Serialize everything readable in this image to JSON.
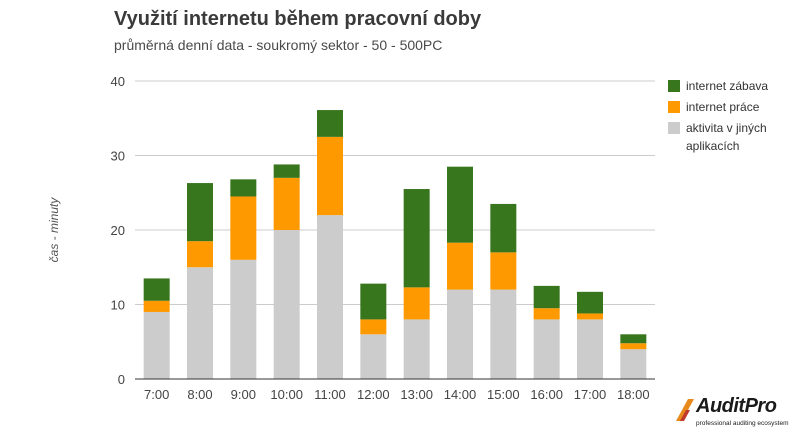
{
  "chart_data": {
    "type": "bar",
    "stacked": true,
    "title": "Využití internetu během pracovní doby",
    "subtitle": "průměrná denní data - soukromý sektor - 50 - 500PC",
    "xlabel": "",
    "ylabel": "čas - minuty",
    "ylim": [
      0,
      40
    ],
    "yticks": [
      "0",
      "10",
      "20",
      "30",
      "40"
    ],
    "grid": true,
    "legend_position": "right",
    "categories": [
      "7:00",
      "8:00",
      "9:00",
      "10:00",
      "11:00",
      "12:00",
      "13:00",
      "14:00",
      "15:00",
      "16:00",
      "17:00",
      "18:00"
    ],
    "series": [
      {
        "name": "aktivita v jiných aplikacích",
        "color": "#cccccc",
        "values": [
          9,
          15,
          16,
          20,
          22,
          6,
          8,
          12,
          12,
          8,
          8,
          4
        ]
      },
      {
        "name": "internet práce",
        "color": "#ff9900",
        "values": [
          1.5,
          3.5,
          8.5,
          7,
          10.5,
          2,
          4.3,
          6.3,
          5,
          1.5,
          0.8,
          0.8
        ]
      },
      {
        "name": "internet zábava",
        "color": "#38761d",
        "values": [
          3,
          7.8,
          2.3,
          1.8,
          3.6,
          4.8,
          13.2,
          10.2,
          6.5,
          3,
          2.9,
          1.2
        ]
      }
    ]
  },
  "legend": {
    "items": [
      {
        "label": "internet zábava",
        "color": "#38761d"
      },
      {
        "label": "internet práce",
        "color": "#ff9900"
      },
      {
        "label": "aktivita v jiných aplikacích",
        "color": "#cccccc"
      }
    ]
  },
  "logo": {
    "name": "AuditPro",
    "tagline": "professional auditing ecosystem"
  }
}
